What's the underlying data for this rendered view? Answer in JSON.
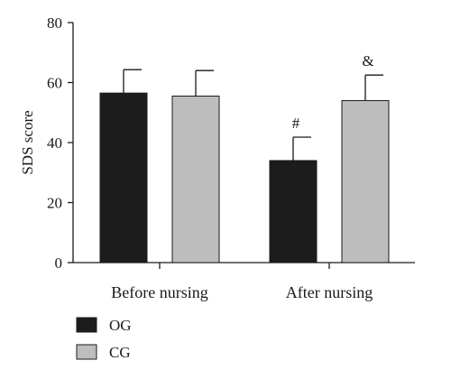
{
  "chart_data": {
    "type": "bar",
    "categories": [
      "Before nursing",
      "After nursing"
    ],
    "series": [
      {
        "name": "OG",
        "values": [
          56.5,
          34.0
        ],
        "errors": [
          7.8,
          7.8
        ],
        "color": "#1c1c1c"
      },
      {
        "name": "CG",
        "values": [
          55.5,
          54.0
        ],
        "errors": [
          8.5,
          8.5
        ],
        "color": "#bdbdbd"
      }
    ],
    "annotations": [
      {
        "series": 0,
        "category": 1,
        "text": "#"
      },
      {
        "series": 1,
        "category": 1,
        "text": "&"
      }
    ],
    "ylabel": "SDS score",
    "ylim": [
      0,
      80
    ],
    "yticks": [
      0,
      20,
      40,
      60,
      80
    ],
    "grid": false,
    "legend_position": "bottom-left"
  }
}
